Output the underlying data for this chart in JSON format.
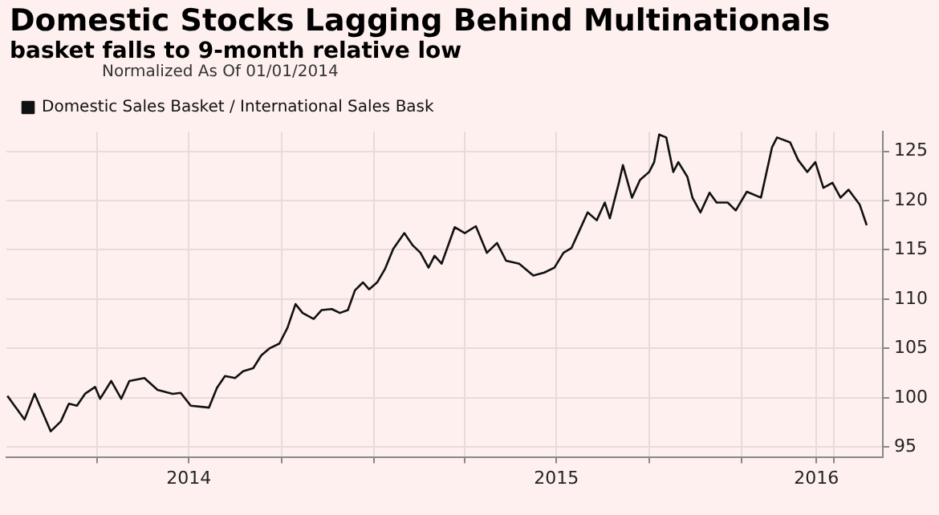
{
  "chart_data": {
    "type": "line",
    "title": "Domestic Stocks Lagging Behind Multinationals",
    "subtitle": "basket falls to 9-month relative low",
    "legend_title": "Normalized As Of 01/01/2014",
    "legend": "top left",
    "grid": true,
    "marker": "none",
    "line_style": "solid",
    "x": [
      "2014-01-02",
      "2014-01-09",
      "2014-01-19",
      "2014-01-29",
      "2014-02-03",
      "2014-02-14",
      "2014-02-24",
      "2014-03-04",
      "2014-03-12",
      "2014-03-20",
      "2014-03-30",
      "2014-04-04",
      "2014-04-15",
      "2014-04-25",
      "2014-05-03",
      "2014-05-18",
      "2014-05-31",
      "2014-06-15",
      "2014-06-23",
      "2014-07-03",
      "2014-07-21",
      "2014-07-29",
      "2014-08-06",
      "2014-08-16",
      "2014-08-24",
      "2014-09-03",
      "2014-09-11",
      "2014-09-19",
      "2014-09-29",
      "2014-10-07",
      "2014-10-15",
      "2014-10-22",
      "2014-11-02",
      "2014-11-10",
      "2014-11-20",
      "2014-11-28",
      "2014-12-06",
      "2014-12-13",
      "2014-12-21",
      "2014-12-27",
      "2015-01-04",
      "2015-01-12",
      "2015-01-20",
      "2015-01-31",
      "2015-02-08",
      "2015-02-16",
      "2015-02-24",
      "2015-03-02",
      "2015-03-09",
      "2015-03-22",
      "2015-04-01",
      "2015-04-12",
      "2015-04-23",
      "2015-05-03",
      "2015-05-12",
      "2015-05-25",
      "2015-06-08",
      "2015-06-19",
      "2015-06-29",
      "2015-07-08",
      "2015-07-16",
      "2015-07-24",
      "2015-08-01",
      "2015-08-10",
      "2015-08-18",
      "2015-08-23",
      "2015-09-01",
      "2015-09-05",
      "2015-09-14",
      "2015-09-22",
      "2015-10-01",
      "2015-10-06",
      "2015-10-11",
      "2015-10-18",
      "2015-10-25",
      "2015-10-30",
      "2015-11-08",
      "2015-11-13",
      "2015-11-21",
      "2015-11-30",
      "2015-12-07",
      "2015-12-18",
      "2015-12-26",
      "2016-01-06",
      "2016-01-20",
      "2016-01-31",
      "2016-02-05",
      "2016-02-18",
      "2016-02-26",
      "2016-03-06",
      "2016-03-14",
      "2016-03-22",
      "2016-03-31",
      "2016-04-08",
      "2016-04-16",
      "2016-04-27",
      "2016-05-04"
    ],
    "series": [
      {
        "name": "Domestic Sales Basket / International Sales Bask",
        "color": "#111111",
        "values": [
          100.2,
          99.2,
          97.8,
          100.4,
          99.2,
          96.6,
          97.6,
          99.4,
          99.2,
          100.4,
          101.1,
          99.9,
          101.7,
          99.9,
          101.7,
          102.0,
          100.8,
          100.4,
          100.5,
          99.2,
          99.0,
          101.0,
          102.2,
          102.0,
          102.7,
          103.0,
          104.3,
          105.0,
          105.5,
          107.1,
          109.5,
          108.6,
          108.0,
          108.9,
          109.0,
          108.6,
          108.9,
          110.9,
          111.7,
          111.0,
          111.7,
          113.1,
          115.1,
          116.7,
          115.5,
          114.7,
          113.2,
          114.4,
          113.6,
          117.3,
          116.7,
          117.4,
          114.7,
          115.7,
          113.9,
          113.6,
          112.4,
          112.7,
          113.2,
          114.7,
          115.2,
          117.0,
          118.8,
          118.0,
          119.8,
          118.2,
          121.8,
          123.6,
          120.3,
          122.1,
          122.9,
          123.9,
          126.7,
          126.4,
          122.9,
          123.9,
          122.4,
          120.3,
          118.8,
          120.8,
          119.8,
          119.8,
          119.0,
          120.9,
          120.3,
          125.4,
          126.4,
          125.9,
          124.1,
          122.9,
          123.9,
          121.3,
          121.8,
          120.3,
          121.1,
          119.6,
          117.5
        ]
      }
    ],
    "xlim": [
      "2014-01-01",
      "2016-05-20"
    ],
    "xticks": [
      {
        "value": "2014-04-01",
        "label": null
      },
      {
        "value": "2014-07-01",
        "label": "2014"
      },
      {
        "value": "2014-10-01",
        "label": null
      },
      {
        "value": "2015-01-01",
        "label": null
      },
      {
        "value": "2015-04-01",
        "label": null
      },
      {
        "value": "2015-07-01",
        "label": "2015"
      },
      {
        "value": "2015-10-01",
        "label": null
      },
      {
        "value": "2016-01-01",
        "label": null
      },
      {
        "value": "2016-03-15",
        "label": "2016"
      },
      {
        "value": "2016-04-01",
        "label": null
      }
    ],
    "ylim": [
      94,
      127
    ],
    "yticks": [
      95,
      100,
      105,
      110,
      115,
      120,
      125
    ]
  }
}
